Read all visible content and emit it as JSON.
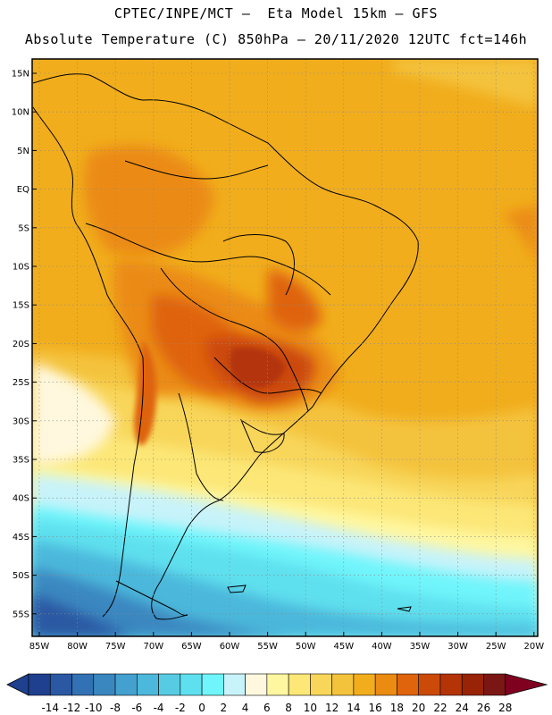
{
  "title": {
    "line1": "CPTEC/INPE/MCT –  Eta Model 15km – GFS",
    "line2": "Absolute Temperature (C) 850hPa – 20/11/2020 12UTC fct=146h"
  },
  "map": {
    "lat_labels": [
      "15N",
      "10N",
      "5N",
      "EQ",
      "5S",
      "10S",
      "15S",
      "20S",
      "25S",
      "30S",
      "35S",
      "40S",
      "45S",
      "50S",
      "55S"
    ],
    "lon_labels": [
      "85W",
      "80W",
      "75W",
      "70W",
      "65W",
      "60W",
      "55W",
      "50W",
      "45W",
      "40W",
      "35W",
      "30W",
      "25W",
      "20W"
    ]
  },
  "colorbar": {
    "labels": [
      "-14",
      "-12",
      "-10",
      "-8",
      "-6",
      "-4",
      "-2",
      "0",
      "2",
      "4",
      "6",
      "8",
      "10",
      "12",
      "14",
      "16",
      "18",
      "20",
      "22",
      "24",
      "26",
      "28"
    ],
    "colors": [
      "#1f3f8f",
      "#2a58a3",
      "#3271b3",
      "#3a87c0",
      "#43a0cf",
      "#4cb8db",
      "#57cbe3",
      "#5ee0ee",
      "#6ff5fb",
      "#c8f3fa",
      "#fff8de",
      "#fff7a0",
      "#fce777",
      "#f8d65a",
      "#f4c33c",
      "#f1ad1c",
      "#eb8b12",
      "#df640c",
      "#cc4a08",
      "#b43407",
      "#992306",
      "#7a1714",
      "#800020"
    ]
  }
}
